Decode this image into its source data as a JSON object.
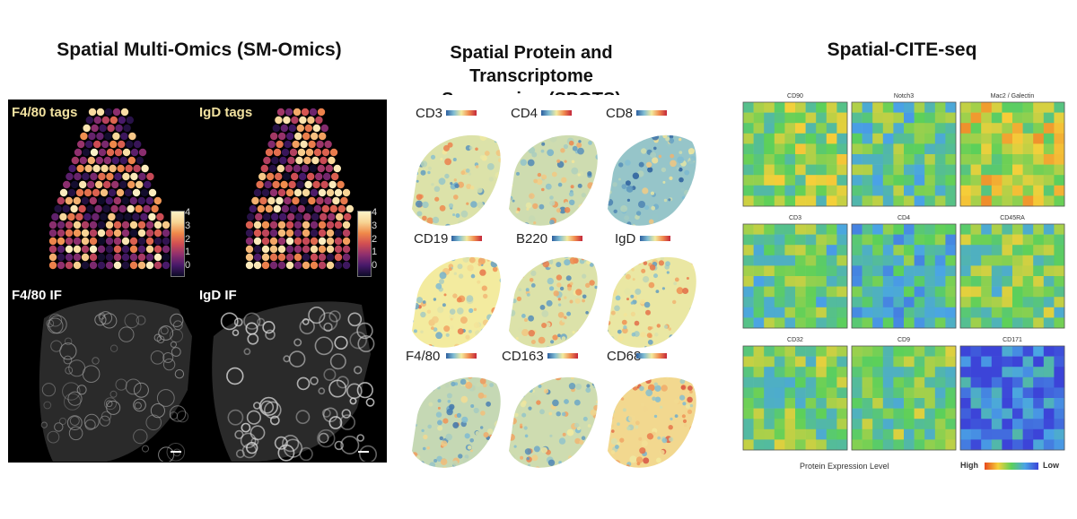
{
  "titles": {
    "sm_omics": "Spatial Multi-Omics (SM-Omics)",
    "spots_line1": "Spatial Protein and Transcriptome",
    "spots_line2": "Sequencing (SPOTS)",
    "cite": "Spatial-CITE-seq"
  },
  "sm_omics": {
    "panels": [
      {
        "label": "F4/80 tags",
        "kind": "tags"
      },
      {
        "label": "IgD tags",
        "kind": "tags"
      },
      {
        "label": "F4/80 IF",
        "kind": "if"
      },
      {
        "label": "IgD IF",
        "kind": "if"
      }
    ],
    "colorbar_ticks": [
      "4",
      "3",
      "2",
      "1",
      "0"
    ],
    "colormap": [
      "#0d0b27",
      "#47196a",
      "#8f2f6e",
      "#d14e52",
      "#f08a4a",
      "#f7d494",
      "#fdf2c8"
    ]
  },
  "spots": {
    "markers": [
      "CD3",
      "CD4",
      "CD8",
      "CD19",
      "B220",
      "IgD",
      "F4/80",
      "CD163",
      "CD68"
    ],
    "colormap": [
      "#2c5e9e",
      "#7fbcd3",
      "#f3eb9f",
      "#f08b4f",
      "#c3263a"
    ]
  },
  "cite": {
    "markers": [
      "CD90",
      "Notch3",
      "Mac2 / Galectin",
      "CD3",
      "CD4",
      "CD45RA",
      "CD32",
      "CD9",
      "CD171"
    ],
    "legend_label": "Protein Expression Level",
    "legend_high": "High",
    "legend_low": "Low",
    "colormap": [
      "#e84a1e",
      "#f5d03a",
      "#5cd05a",
      "#4aa4e6",
      "#3c44d8"
    ]
  }
}
